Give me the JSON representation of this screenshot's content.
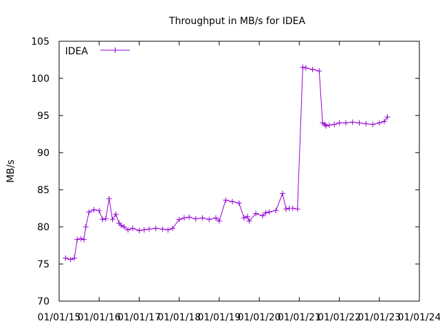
{
  "chart_data": {
    "type": "line",
    "title": "Throughput in MB/s for IDEA",
    "ylabel": "MB/s",
    "xlabel": "",
    "ylim": [
      70,
      105
    ],
    "y_ticks": [
      70,
      75,
      80,
      85,
      90,
      95,
      100,
      105
    ],
    "x_ticks": [
      "01/01/15",
      "01/01/16",
      "01/01/17",
      "01/01/18",
      "01/01/19",
      "01/01/20",
      "01/01/21",
      "01/01/22",
      "01/01/23",
      "01/01/24"
    ],
    "legend": "top-left",
    "grid": false,
    "series": [
      {
        "name": "IDEA",
        "color": "#9400D3",
        "marker": "plus",
        "x": [
          "2015-03-01",
          "2015-04-15",
          "2015-05-20",
          "2015-06-15",
          "2015-07-20",
          "2015-08-15",
          "2015-09-01",
          "2015-10-01",
          "2015-11-15",
          "2016-01-01",
          "2016-02-01",
          "2016-03-01",
          "2016-04-01",
          "2016-05-01",
          "2016-06-01",
          "2016-07-01",
          "2016-07-20",
          "2016-08-15",
          "2016-09-20",
          "2016-11-01",
          "2017-01-01",
          "2017-02-15",
          "2017-04-01",
          "2017-06-01",
          "2017-08-01",
          "2017-09-20",
          "2017-11-01",
          "2018-01-01",
          "2018-02-15",
          "2018-04-01",
          "2018-06-01",
          "2018-08-01",
          "2018-10-01",
          "2018-12-01",
          "2019-01-01",
          "2019-03-01",
          "2019-05-01",
          "2019-07-01",
          "2019-08-15",
          "2019-09-15",
          "2019-10-01",
          "2019-12-01",
          "2020-02-01",
          "2020-03-01",
          "2020-04-01",
          "2020-06-01",
          "2020-08-01",
          "2020-09-01",
          "2020-10-01",
          "2020-11-01",
          "2020-12-15",
          "2021-02-01",
          "2021-03-01",
          "2021-05-01",
          "2021-07-01",
          "2021-08-01",
          "2021-08-20",
          "2021-09-01",
          "2021-10-01",
          "2021-11-15",
          "2022-01-01",
          "2022-03-01",
          "2022-05-01",
          "2022-07-01",
          "2022-09-01",
          "2022-11-01",
          "2023-01-01",
          "2023-02-15",
          "2023-03-15"
        ],
        "values": [
          75.8,
          75.6,
          75.8,
          78.3,
          78.4,
          78.3,
          80.0,
          82.0,
          82.3,
          82.2,
          81.0,
          81.1,
          83.8,
          81.0,
          81.7,
          80.5,
          80.2,
          80.0,
          79.6,
          79.8,
          79.5,
          79.6,
          79.7,
          79.8,
          79.7,
          79.6,
          79.8,
          81.0,
          81.2,
          81.3,
          81.1,
          81.2,
          81.0,
          81.2,
          80.8,
          83.6,
          83.4,
          83.2,
          81.2,
          81.4,
          80.8,
          81.8,
          81.5,
          81.9,
          82.0,
          82.2,
          84.5,
          82.4,
          82.5,
          82.5,
          82.4,
          101.5,
          101.4,
          101.2,
          101.0,
          94.0,
          93.8,
          93.6,
          93.7,
          93.8,
          94.0,
          94.0,
          94.1,
          94.0,
          93.9,
          93.8,
          94.0,
          94.2,
          94.8
        ]
      }
    ]
  }
}
